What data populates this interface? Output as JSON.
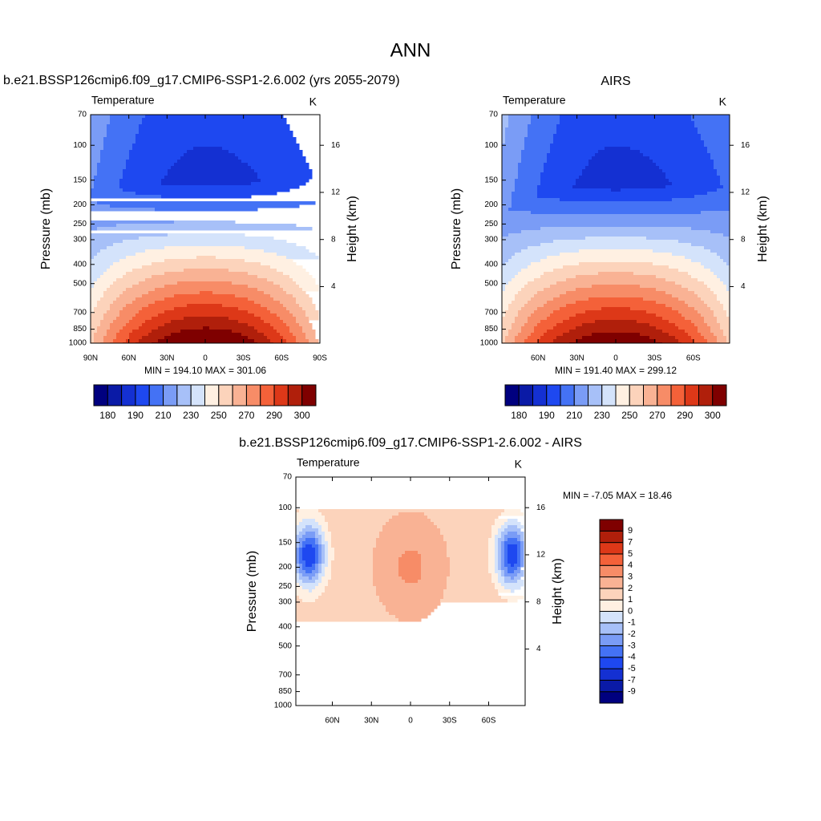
{
  "title": "ANN",
  "chart_data": [
    {
      "type": "contour",
      "title": "b.e21.BSSP126cmip6.f09_g17.CMIP6-SSP1-2.6.002 (yrs 2055-2079)",
      "subtitle": "Temperature",
      "units": "K",
      "ylabel": "Pressure (mb)",
      "y2label": "Height (km)",
      "log_y": true,
      "ylim": [
        1000,
        70
      ],
      "yticks": [
        70,
        100,
        150,
        200,
        250,
        300,
        400,
        500,
        700,
        850,
        1000
      ],
      "y2lim": [
        -0.8,
        18.6
      ],
      "y2ticks": [
        4,
        8,
        12,
        16
      ],
      "xlim": [
        90,
        -90
      ],
      "xticks": [
        {
          "value": 90,
          "label": "90N"
        },
        {
          "value": 60,
          "label": "60N"
        },
        {
          "value": 30,
          "label": "30N"
        },
        0,
        {
          "value": -30,
          "label": "30S"
        },
        {
          "value": -60,
          "label": "60S"
        },
        {
          "value": -90,
          "label": "90S"
        }
      ],
      "stats": "MIN = 194.10  MAX = 301.06",
      "colorbar": {
        "orientation": "horizontal",
        "colors": [
          "#00007f",
          "#0a1aa6",
          "#1430d2",
          "#1e48f0",
          "#4472f5",
          "#7a9cf6",
          "#a7c0f8",
          "#d4e3fb",
          "#fff0e2",
          "#fcd3bb",
          "#f9b294",
          "#f78c67",
          "#f46139",
          "#dd3818",
          "#b01f0b",
          "#7f0000"
        ],
        "labels": [
          180,
          190,
          210,
          230,
          250,
          270,
          290,
          300
        ]
      }
    },
    {
      "type": "contour",
      "title": "AIRS",
      "subtitle": "Temperature",
      "units": "K",
      "ylabel": "Pressure (mb)",
      "y2label": "Height (km)",
      "log_y": true,
      "ylim": [
        1000,
        70
      ],
      "yticks": [
        70,
        100,
        150,
        200,
        250,
        300,
        400,
        500,
        700,
        850,
        1000
      ],
      "y2lim": [
        -0.8,
        18.6
      ],
      "y2ticks": [
        4,
        8,
        12,
        16
      ],
      "xlim": [
        88,
        -88
      ],
      "xticks": [
        {
          "value": 60,
          "label": "60N"
        },
        {
          "value": 30,
          "label": "30N"
        },
        0,
        {
          "value": -30,
          "label": "30S"
        },
        {
          "value": -60,
          "label": "60S"
        }
      ],
      "stats": "MIN = 191.40  MAX = 299.12",
      "colorbar": {
        "orientation": "horizontal",
        "colors": [
          "#00007f",
          "#0a1aa6",
          "#1430d2",
          "#1e48f0",
          "#4472f5",
          "#7a9cf6",
          "#a7c0f8",
          "#d4e3fb",
          "#fff0e2",
          "#fcd3bb",
          "#f9b294",
          "#f78c67",
          "#f46139",
          "#dd3818",
          "#b01f0b",
          "#7f0000"
        ],
        "labels": [
          180,
          190,
          210,
          230,
          250,
          270,
          290,
          300
        ]
      }
    },
    {
      "type": "contour",
      "title": "b.e21.BSSP126cmip6.f09_g17.CMIP6-SSP1-2.6.002 - AIRS",
      "subtitle": "Temperature",
      "units": "K",
      "ylabel": "Pressure (mb)",
      "y2label": "Height (km)",
      "log_y": true,
      "ylim": [
        1000,
        70
      ],
      "yticks": [
        70,
        100,
        150,
        200,
        250,
        300,
        400,
        500,
        700,
        850,
        1000
      ],
      "y2lim": [
        -0.8,
        18.6
      ],
      "y2ticks": [
        4,
        8,
        12,
        16
      ],
      "xlim": [
        88,
        -88
      ],
      "xticks": [
        {
          "value": 60,
          "label": "60N"
        },
        {
          "value": 30,
          "label": "30N"
        },
        0,
        {
          "value": -30,
          "label": "30S"
        },
        {
          "value": -60,
          "label": "60S"
        }
      ],
      "stats": "MIN =  -7.05  MAX =  18.46",
      "colorbar": {
        "orientation": "vertical",
        "colors": [
          "#00007f",
          "#0a1aa6",
          "#1430d2",
          "#1e48f0",
          "#4472f5",
          "#7a9cf6",
          "#a7c0f8",
          "#d4e3fb",
          "#fff0e2",
          "#fcd3bb",
          "#f9b294",
          "#f78c67",
          "#f46139",
          "#dd3818",
          "#b01f0b",
          "#7f0000"
        ],
        "labels": [
          9,
          7,
          5,
          4,
          3,
          2,
          1,
          0,
          -1,
          -2,
          -3,
          -4,
          -5,
          -7,
          -9
        ]
      }
    }
  ]
}
